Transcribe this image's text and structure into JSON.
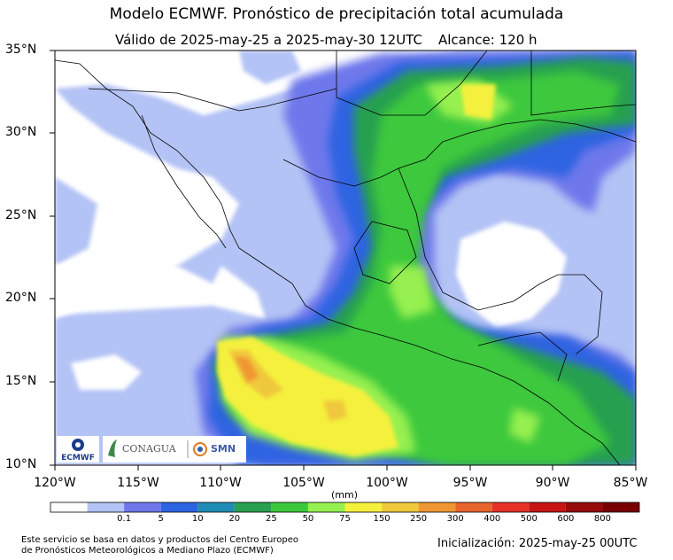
{
  "header": {
    "title": "Modelo ECMWF. Pronóstico de precipitación total acumulada",
    "valid": "Válido de 2025-may-25 a 2025-may-30 12UTC",
    "range": "Alcance: 120 h"
  },
  "axes": {
    "lat_labels": [
      "35°N",
      "30°N",
      "25°N",
      "20°N",
      "15°N",
      "10°N"
    ],
    "lon_labels": [
      "120°W",
      "115°W",
      "110°W",
      "105°W",
      "100°W",
      "95°W",
      "90°W",
      "85°W"
    ]
  },
  "colorbar": {
    "units": "(mm)",
    "labels": [
      "0.1",
      "5",
      "10",
      "20",
      "25",
      "50",
      "75",
      "150",
      "250",
      "300",
      "400",
      "500",
      "600",
      "800"
    ],
    "colors": [
      "#ffffff",
      "#b4c3f5",
      "#6e78eb",
      "#2d64e1",
      "#1e8cb4",
      "#28a050",
      "#3cc83c",
      "#96f050",
      "#f5f03c",
      "#f0c83c",
      "#f09632",
      "#e6642d",
      "#e63228",
      "#c81414",
      "#960a0a",
      "#780000"
    ]
  },
  "logos": {
    "ecmwf": "ECMWF",
    "conagua": "CONAGUA",
    "smn": "SMN"
  },
  "footer": {
    "source_line1": "Este servicio se basa en datos y productos del Centro Europeo",
    "source_line2": "de Pronósticos Meteorológicos a Mediano Plazo (ECMWF)",
    "init": "Inicialización: 2025-may-25 00UTC"
  }
}
